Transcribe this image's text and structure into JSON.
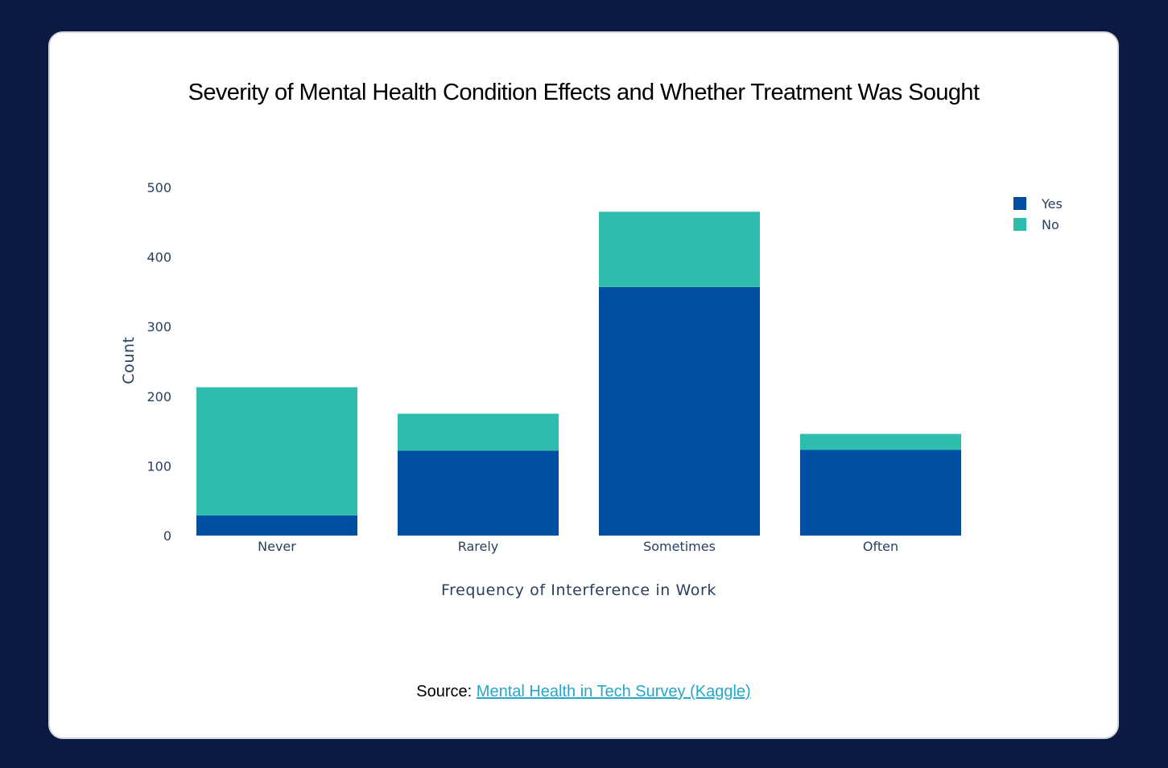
{
  "source": {
    "prefix": "Source:",
    "link_text": "Mental Health in Tech Survey (Kaggle)"
  },
  "colors": {
    "background": "#0c1a43",
    "yes": "#004fa2",
    "no": "#2ebcad",
    "link": "#25a7c9",
    "axis_text": "#2a3f5f"
  },
  "chart_data": {
    "type": "bar",
    "stacked": true,
    "title": "Severity of Mental Health Condition Effects and Whether Treatment Was Sought",
    "xlabel": "Frequency of Interference in Work",
    "ylabel": "Count",
    "categories": [
      "Never",
      "Rarely",
      "Sometimes",
      "Often"
    ],
    "series": [
      {
        "name": "Yes",
        "values": [
          29,
          122,
          357,
          123
        ]
      },
      {
        "name": "No",
        "values": [
          184,
          53,
          108,
          23
        ]
      }
    ],
    "ylim": [
      0,
      500
    ],
    "yticks": [
      0,
      100,
      200,
      300,
      400,
      500
    ],
    "grid": false,
    "legend_position": "top-right"
  }
}
